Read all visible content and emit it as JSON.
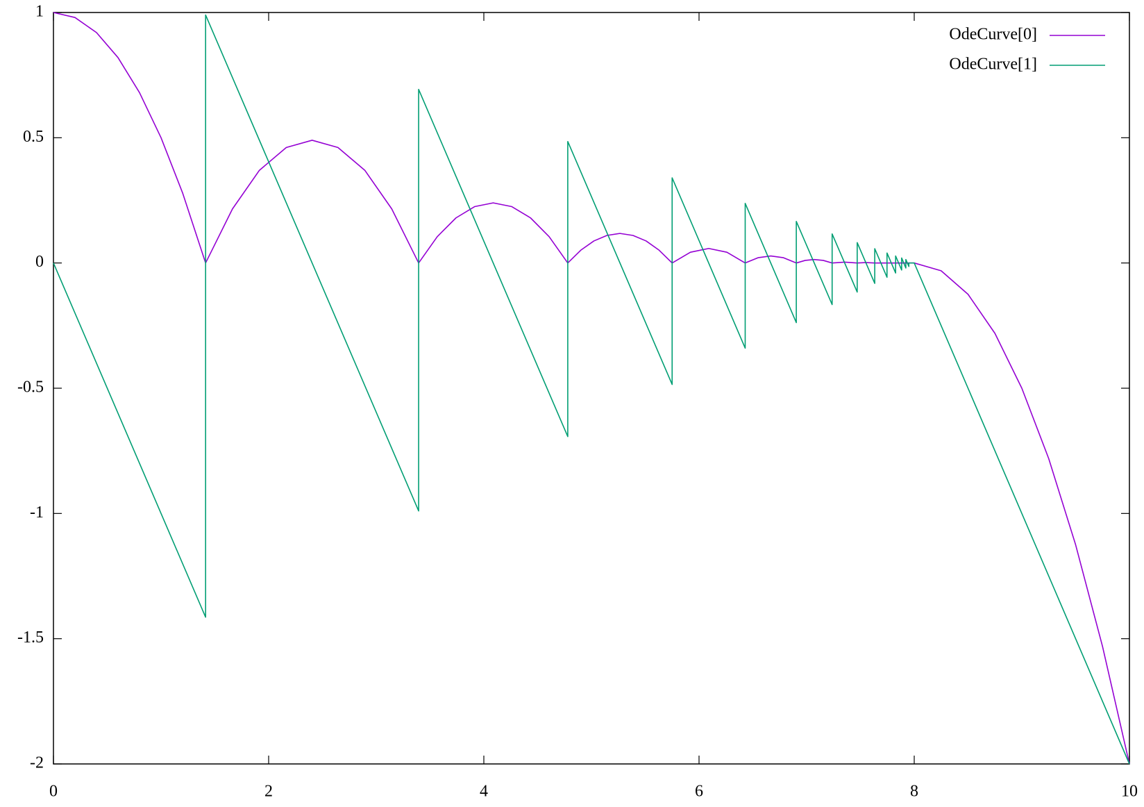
{
  "chart_data": {
    "type": "line",
    "xlim": [
      0,
      10
    ],
    "xticks": [
      0,
      2,
      4,
      6,
      8,
      10
    ],
    "ylim": [
      -2,
      1
    ],
    "yticks": [
      1,
      0.5,
      0,
      -0.5,
      -1,
      -1.5,
      -2
    ],
    "legend": "top-right",
    "series": [
      {
        "name": "OdeCurve[0]",
        "color": "#9400d3",
        "x": [
          0,
          0.2,
          0.4,
          0.6,
          0.8,
          1.0,
          1.2,
          1.414,
          1.664,
          1.914,
          2.164,
          2.404,
          2.644,
          2.894,
          3.144,
          3.394,
          3.567,
          3.741,
          3.914,
          4.087,
          4.26,
          4.434,
          4.607,
          4.78,
          4.901,
          5.023,
          5.144,
          5.265,
          5.386,
          5.508,
          5.629,
          5.75,
          5.92,
          6.09,
          6.259,
          6.429,
          6.548,
          6.667,
          6.785,
          6.904,
          6.987,
          7.07,
          7.154,
          7.237,
          7.354,
          7.47,
          7.552,
          7.633,
          7.747,
          7.827,
          8.0,
          8.25,
          8.5,
          8.75,
          9.0,
          9.25,
          9.5,
          9.75,
          10
        ],
        "values": [
          1,
          0.98,
          0.92,
          0.82,
          0.68,
          0.5,
          0.28,
          0,
          0.216,
          0.37,
          0.461,
          0.49,
          0.461,
          0.37,
          0.216,
          0,
          0.105,
          0.18,
          0.225,
          0.24,
          0.225,
          0.18,
          0.105,
          0,
          0.051,
          0.088,
          0.11,
          0.118,
          0.11,
          0.088,
          0.051,
          0,
          0.043,
          0.058,
          0.043,
          0,
          0.021,
          0.028,
          0.021,
          0,
          0.0103,
          0.0138,
          0.0103,
          0,
          0.0033,
          0,
          0.0016,
          0,
          0,
          0,
          0,
          -0.031,
          -0.125,
          -0.281,
          -0.5,
          -0.781,
          -1.125,
          -1.531,
          -2
        ]
      },
      {
        "name": "OdeCurve[1]",
        "color": "#009e73",
        "x": [
          0,
          1.414,
          1.414,
          3.394,
          3.394,
          4.78,
          4.78,
          5.75,
          5.75,
          6.429,
          6.429,
          6.904,
          6.904,
          7.237,
          7.237,
          7.47,
          7.47,
          7.633,
          7.633,
          7.747,
          7.747,
          7.827,
          7.827,
          7.883,
          7.883,
          7.922,
          7.922,
          7.95,
          7.95,
          8.0,
          10
        ],
        "values": [
          0,
          -1.414,
          0.99,
          -0.99,
          0.693,
          -0.693,
          0.485,
          -0.485,
          0.34,
          -0.34,
          0.238,
          -0.238,
          0.166,
          -0.166,
          0.116,
          -0.116,
          0.0815,
          -0.0815,
          0.057,
          -0.057,
          0.04,
          -0.04,
          0.028,
          -0.028,
          0.02,
          -0.02,
          0.014,
          -0.014,
          0,
          0,
          -2
        ]
      }
    ]
  }
}
